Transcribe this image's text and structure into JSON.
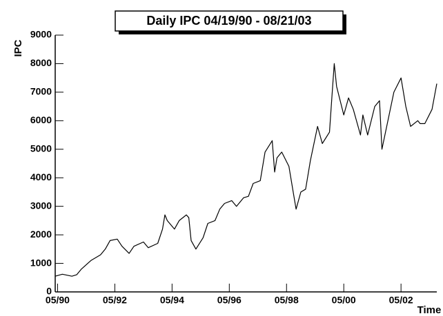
{
  "chart_data": {
    "type": "line",
    "title": "Daily IPC  04/19/90 - 08/21/03",
    "x_label": "Time",
    "y_label": "IPC",
    "grid": false,
    "xlim": [
      "1990-04",
      "2003-08"
    ],
    "ylim": [
      0,
      9000
    ],
    "yticks": [
      0,
      1000,
      2000,
      3000,
      4000,
      5000,
      6000,
      7000,
      8000,
      9000
    ],
    "xticks": [
      {
        "value": "1990-05",
        "label": "05/90"
      },
      {
        "value": "1992-05",
        "label": "05/92"
      },
      {
        "value": "1994-05",
        "label": "05/94"
      },
      {
        "value": "1996-05",
        "label": "05/96"
      },
      {
        "value": "1998-05",
        "label": "05/98"
      },
      {
        "value": "2000-05",
        "label": "05/00"
      },
      {
        "value": "2002-05",
        "label": "05/02"
      }
    ],
    "series": [
      {
        "name": "IPC",
        "color": "#000000",
        "x": [
          "1990-04",
          "1990-07",
          "1990-11",
          "1991-01",
          "1991-03",
          "1991-07",
          "1991-11",
          "1992-01",
          "1992-03",
          "1992-06",
          "1992-08",
          "1992-11",
          "1993-01",
          "1993-05",
          "1993-07",
          "1993-11",
          "1994-01",
          "1994-02",
          "1994-03",
          "1994-06",
          "1994-08",
          "1994-11",
          "1994-12",
          "1995-01",
          "1995-03",
          "1995-06",
          "1995-08",
          "1995-11",
          "1996-01",
          "1996-03",
          "1996-06",
          "1996-08",
          "1996-11",
          "1997-01",
          "1997-03",
          "1997-06",
          "1997-08",
          "1997-11",
          "1997-12",
          "1998-01",
          "1998-03",
          "1998-06",
          "1998-08",
          "1998-09",
          "1998-11",
          "1999-01",
          "1999-03",
          "1999-06",
          "1999-08",
          "1999-11",
          "1999-12",
          "2000-01",
          "2000-02",
          "2000-05",
          "2000-07",
          "2000-09",
          "2000-12",
          "2001-01",
          "2001-03",
          "2001-06",
          "2001-08",
          "2001-09",
          "2001-12",
          "2002-02",
          "2002-05",
          "2002-07",
          "2002-09",
          "2002-12",
          "2003-01",
          "2003-03",
          "2003-06",
          "2003-08"
        ],
        "values": [
          550,
          620,
          550,
          600,
          800,
          1100,
          1300,
          1500,
          1800,
          1850,
          1600,
          1350,
          1600,
          1750,
          1550,
          1700,
          2200,
          2700,
          2500,
          2200,
          2500,
          2700,
          2600,
          1800,
          1500,
          1900,
          2400,
          2500,
          2900,
          3100,
          3200,
          3000,
          3300,
          3350,
          3800,
          3900,
          4900,
          5300,
          4200,
          4700,
          4900,
          4400,
          3400,
          2900,
          3500,
          3600,
          4600,
          5800,
          5200,
          5600,
          6800,
          8000,
          7200,
          6200,
          6800,
          6400,
          5500,
          6200,
          5500,
          6500,
          6700,
          5000,
          6200,
          7000,
          7500,
          6500,
          5800,
          6000,
          5900,
          5900,
          6400,
          7300
        ]
      }
    ]
  }
}
